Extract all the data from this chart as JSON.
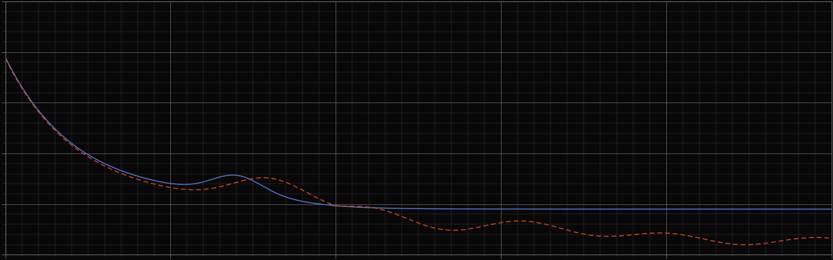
{
  "background_color": "#080808",
  "plot_bg_color": "#080808",
  "line1_color": "#5577dd",
  "line2_color": "#dd4422",
  "line_width": 1.0,
  "figsize": [
    12.09,
    3.78
  ],
  "dpi": 100,
  "xlim": [
    0,
    100
  ],
  "ylim": [
    0,
    10
  ],
  "major_x_step": 20,
  "major_y_step": 2,
  "minor_x_step": 2,
  "minor_y_step": 0.4
}
